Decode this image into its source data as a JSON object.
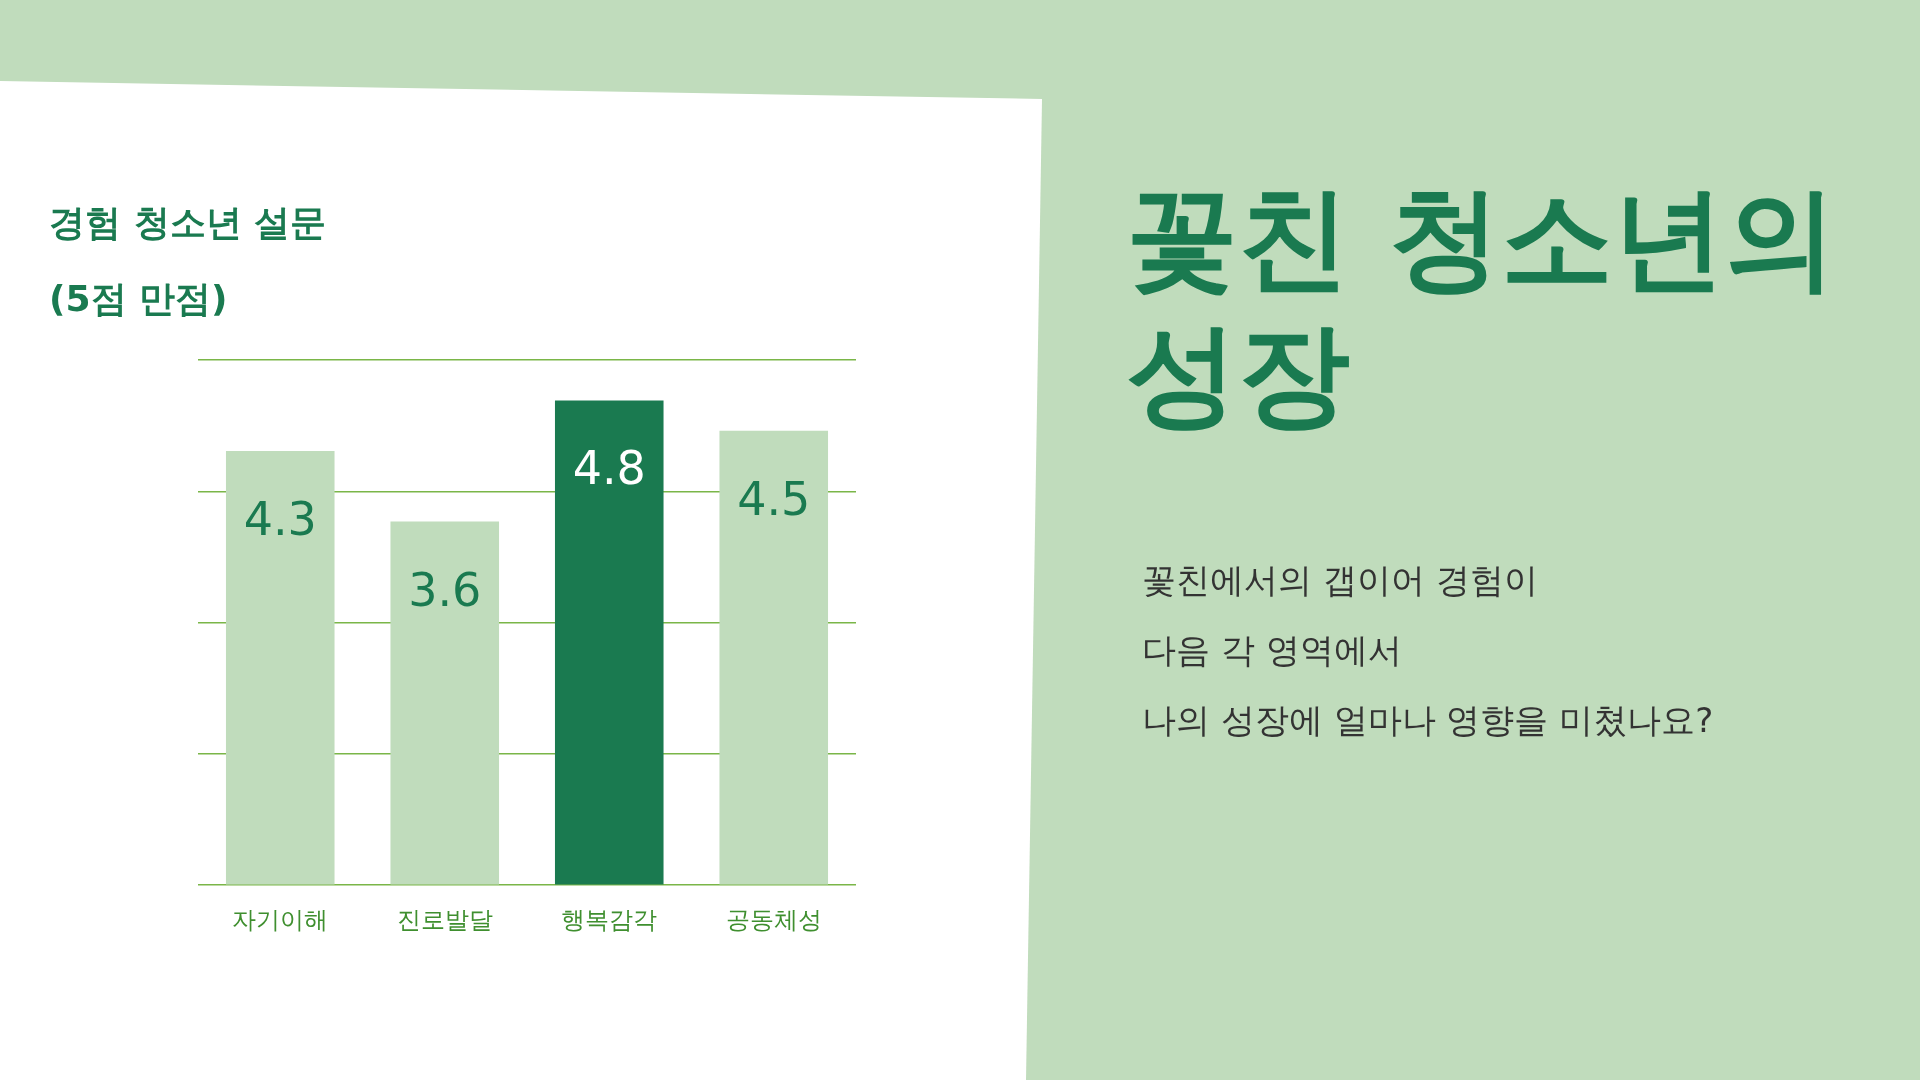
{
  "chart_data": {
    "type": "bar",
    "title": "꽃친 청소년의 성장",
    "subtitle": "경험 청소년 설문 (5점 만점)",
    "annotations": [
      "꽃친에서의 갭이어 경험이",
      "다음 각 영역에서",
      "나의 성장에 얼마나 영향을 미쳤나요?"
    ],
    "categories": [
      "자기이해",
      "진로발달",
      "행복감각",
      "공동체성"
    ],
    "values": [
      4.3,
      3.6,
      4.8,
      4.5
    ],
    "colors": [
      "#c0dcbc",
      "#c0dcbc",
      "#1a7a50",
      "#c0dcbc"
    ],
    "ylim": [
      0,
      5.2
    ],
    "yticks": [
      {
        "value": 0,
        "label": null
      },
      {
        "value": 1.3,
        "label": null
      },
      {
        "value": 2.6,
        "label": null
      },
      {
        "value": 3.9,
        "label": null
      },
      {
        "value": 5.2,
        "label": null
      }
    ],
    "grid": "y",
    "tick_labels": "x",
    "data_labels": true
  }
}
